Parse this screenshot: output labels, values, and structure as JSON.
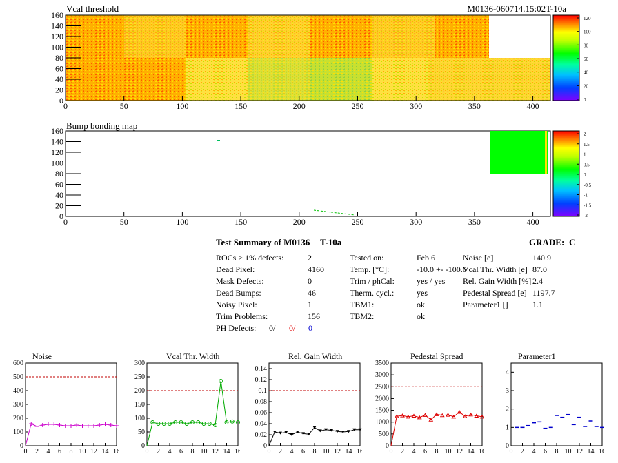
{
  "header": {
    "module_id": "M0136-060714.15:02T-10a"
  },
  "maps": [
    {
      "title": "Vcal threshold",
      "xticks": [
        0,
        50,
        100,
        150,
        200,
        250,
        300,
        350,
        400
      ],
      "yticks": [
        0,
        20,
        40,
        60,
        80,
        100,
        120,
        140,
        160
      ],
      "scale_labels": [
        "0",
        "20",
        "40",
        "60",
        "80",
        "100",
        "120"
      ],
      "colors": {
        "high": "#ff6a00",
        "mid": "#ffd700",
        "low": "#9acd32",
        "empty": "#ffffff"
      }
    },
    {
      "title": "Bump bonding map",
      "xticks": [
        0,
        50,
        100,
        150,
        200,
        250,
        300,
        350,
        400
      ],
      "yticks": [
        0,
        20,
        40,
        60,
        80,
        100,
        120,
        140,
        160
      ],
      "scale_labels": [
        "-2",
        "-1.5",
        "-1",
        "-0.5",
        "0",
        "0.5",
        "1",
        "1.5",
        "2"
      ],
      "colors": {
        "fill": "#00ff00"
      }
    }
  ],
  "summary": {
    "title": "Test Summary of M0136",
    "temp_tag": "T-10a",
    "grade_label": "GRADE:",
    "grade": "C",
    "col1": [
      {
        "label": "ROCs > 1% defects:",
        "value": "2"
      },
      {
        "label": "Dead Pixel:",
        "value": "4160"
      },
      {
        "label": "Mask Defects:",
        "value": "0"
      },
      {
        "label": "Dead Bumps:",
        "value": "46"
      },
      {
        "label": "Noisy Pixel:",
        "value": "1"
      },
      {
        "label": "Trim Problems:",
        "value": "156"
      }
    ],
    "ph_defects": {
      "label": "PH Defects:",
      "v1": "0/",
      "v2": "0/",
      "v3": "0"
    },
    "col2": [
      {
        "label": "Tested on:",
        "value": "Feb 6"
      },
      {
        "label": "Temp. [°C]:",
        "value": "-10.0 +- -100.0"
      },
      {
        "label": "Trim / phCal:",
        "value": "yes / yes"
      },
      {
        "label": "Therm. cycl.:",
        "value": "yes"
      },
      {
        "label": "TBM1:",
        "value": "ok"
      },
      {
        "label": "TBM2:",
        "value": "ok"
      }
    ],
    "col3": [
      {
        "label": "Noise [e]",
        "value": "140.9"
      },
      {
        "label": "Vcal Thr. Width [e]",
        "value": "87.0"
      },
      {
        "label": "Rel. Gain Width [%]",
        "value": "2.4"
      },
      {
        "label": "Pedestal Spread [e]",
        "value": "1197.7"
      },
      {
        "label": "Parameter1 []",
        "value": "1.1"
      }
    ]
  },
  "chart_data": [
    {
      "type": "line",
      "title": "Noise",
      "x": [
        1,
        2,
        3,
        4,
        5,
        6,
        7,
        8,
        9,
        10,
        11,
        12,
        13,
        14,
        15,
        16
      ],
      "values": [
        160,
        140,
        150,
        155,
        155,
        150,
        145,
        145,
        150,
        145,
        145,
        145,
        150,
        155,
        150,
        145
      ],
      "ylim": [
        0,
        600
      ],
      "yticks": [
        0,
        100,
        200,
        300,
        400,
        500,
        600
      ],
      "xticks": [
        0,
        2,
        4,
        6,
        8,
        10,
        12,
        14,
        16
      ],
      "threshold": 500,
      "color": "#cc00cc",
      "marker": "plus"
    },
    {
      "type": "line",
      "title": "Vcal Thr. Width",
      "x": [
        1,
        2,
        3,
        4,
        5,
        6,
        7,
        8,
        9,
        10,
        11,
        12,
        13,
        14,
        15,
        16
      ],
      "values": [
        85,
        80,
        80,
        80,
        85,
        85,
        80,
        85,
        85,
        80,
        80,
        75,
        235,
        85,
        88,
        85
      ],
      "ylim": [
        0,
        300
      ],
      "yticks": [
        0,
        50,
        100,
        150,
        200,
        250,
        300
      ],
      "xticks": [
        0,
        2,
        4,
        6,
        8,
        10,
        12,
        14,
        16
      ],
      "threshold": 200,
      "color": "#00aa00",
      "marker": "circle"
    },
    {
      "type": "line",
      "title": "Rel. Gain Width",
      "x": [
        1,
        2,
        3,
        4,
        5,
        6,
        7,
        8,
        9,
        10,
        11,
        12,
        13,
        14,
        15,
        16
      ],
      "values": [
        0.025,
        0.023,
        0.024,
        0.02,
        0.025,
        0.022,
        0.021,
        0.033,
        0.027,
        0.029,
        0.028,
        0.026,
        0.025,
        0.026,
        0.029,
        0.029
      ],
      "ylim": [
        0,
        0.15
      ],
      "yticks": [
        0,
        0.02,
        0.04,
        0.06,
        0.08,
        0.1,
        0.12,
        0.14
      ],
      "ytick_labels": [
        "0",
        "0.02",
        "0.04",
        "0.06",
        "0.08",
        "0.1",
        "0.12",
        "0.14"
      ],
      "xticks": [
        0,
        2,
        4,
        6,
        8,
        10,
        12,
        14,
        16
      ],
      "threshold": 0.1,
      "color": "#000000",
      "marker": "triangle-down"
    },
    {
      "type": "line",
      "title": "Pedestal Spread",
      "x": [
        1,
        2,
        3,
        4,
        5,
        6,
        7,
        8,
        9,
        10,
        11,
        12,
        13,
        14,
        15,
        16
      ],
      "values": [
        1250,
        1280,
        1230,
        1270,
        1200,
        1300,
        1100,
        1330,
        1290,
        1310,
        1230,
        1430,
        1250,
        1320,
        1270,
        1230
      ],
      "ylim": [
        0,
        3500
      ],
      "yticks": [
        0,
        500,
        1000,
        1500,
        2000,
        2500,
        3000,
        3500
      ],
      "xticks": [
        0,
        2,
        4,
        6,
        8,
        10,
        12,
        14,
        16
      ],
      "threshold": 2500,
      "color": "#dd0000",
      "marker": "triangle-up"
    },
    {
      "type": "scatter",
      "title": "Parameter1",
      "x": [
        1,
        2,
        3,
        4,
        5,
        6,
        7,
        8,
        9,
        10,
        11,
        12,
        13,
        14,
        15,
        16
      ],
      "values": [
        1.0,
        1.0,
        1.1,
        1.25,
        1.3,
        0.95,
        1.0,
        1.65,
        1.55,
        1.7,
        1.15,
        1.55,
        1.05,
        1.35,
        1.05,
        1.0
      ],
      "ylim": [
        0,
        4.5
      ],
      "yticks": [
        0,
        1,
        2,
        3,
        4
      ],
      "xticks": [
        0,
        2,
        4,
        6,
        8,
        10,
        12,
        14,
        16
      ],
      "color": "#0000cc",
      "marker": "dash"
    }
  ]
}
